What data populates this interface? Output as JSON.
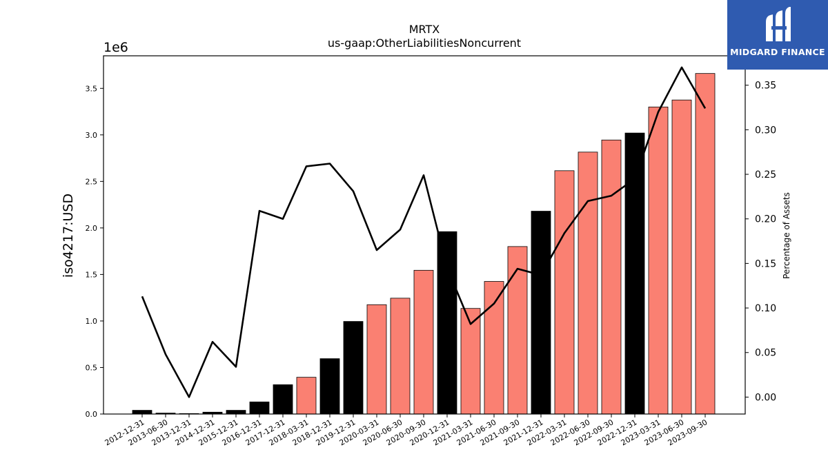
{
  "brand": {
    "name": "MIDGARD FINANCE",
    "color": "#2f5bb0"
  },
  "chart_data": {
    "type": "bar",
    "title": "MRTX",
    "subtitle": "us-gaap:OtherLiabilitiesNoncurrent",
    "ylabel": "iso4217:USD",
    "y_multiplier_label": "1e6",
    "y2label": "Percentage of Assets",
    "ylim": [
      0,
      3850000
    ],
    "y2lim": [
      -0.019,
      0.383
    ],
    "yticks": [
      0.0,
      0.5,
      1.0,
      1.5,
      2.0,
      2.5,
      3.0,
      3.5
    ],
    "y2ticks": [
      0.0,
      0.05,
      0.1,
      0.15,
      0.2,
      0.25,
      0.3,
      0.35
    ],
    "categories": [
      "2012-12-31",
      "2013-06-30",
      "2013-12-31",
      "2014-12-31",
      "2015-12-31",
      "2016-12-31",
      "2017-12-31",
      "2018-03-31",
      "2018-12-31",
      "2019-12-31",
      "2020-03-31",
      "2020-06-30",
      "2020-09-30",
      "2020-12-31",
      "2021-03-31",
      "2021-06-30",
      "2021-09-30",
      "2021-12-31",
      "2022-03-31",
      "2022-06-30",
      "2022-09-30",
      "2022-12-31",
      "2023-03-31",
      "2023-06-30",
      "2023-09-30"
    ],
    "series": [
      {
        "kind": "bar",
        "values": [
          40000,
          10000,
          5000,
          20000,
          40000,
          130000,
          315000,
          395000,
          595000,
          995000,
          1175000,
          1245000,
          1545000,
          1960000,
          1135000,
          1425000,
          1800000,
          2180000,
          2615000,
          2815000,
          2945000,
          3020000,
          3300000,
          3375000,
          3660000
        ],
        "bar_kinds": [
          "annual",
          "annual",
          "annual",
          "annual",
          "annual",
          "annual",
          "annual",
          "quarterly",
          "annual",
          "annual",
          "quarterly",
          "quarterly",
          "quarterly",
          "annual",
          "quarterly",
          "quarterly",
          "quarterly",
          "annual",
          "quarterly",
          "quarterly",
          "quarterly",
          "annual",
          "quarterly",
          "quarterly",
          "quarterly"
        ]
      },
      {
        "kind": "line",
        "axis": "right",
        "values": [
          0.113,
          0.048,
          0.0,
          0.062,
          0.034,
          0.209,
          0.2,
          0.259,
          0.262,
          0.231,
          0.165,
          0.188,
          0.249,
          0.145,
          0.082,
          0.105,
          0.144,
          0.137,
          0.184,
          0.22,
          0.226,
          0.245,
          0.32,
          0.37,
          0.324
        ]
      }
    ],
    "colors": {
      "annual_bar": "#000000",
      "quarterly_bar": "#fa8072",
      "line": "#000000",
      "bar_edge": "#000000"
    },
    "grid": false,
    "legend": "none"
  }
}
